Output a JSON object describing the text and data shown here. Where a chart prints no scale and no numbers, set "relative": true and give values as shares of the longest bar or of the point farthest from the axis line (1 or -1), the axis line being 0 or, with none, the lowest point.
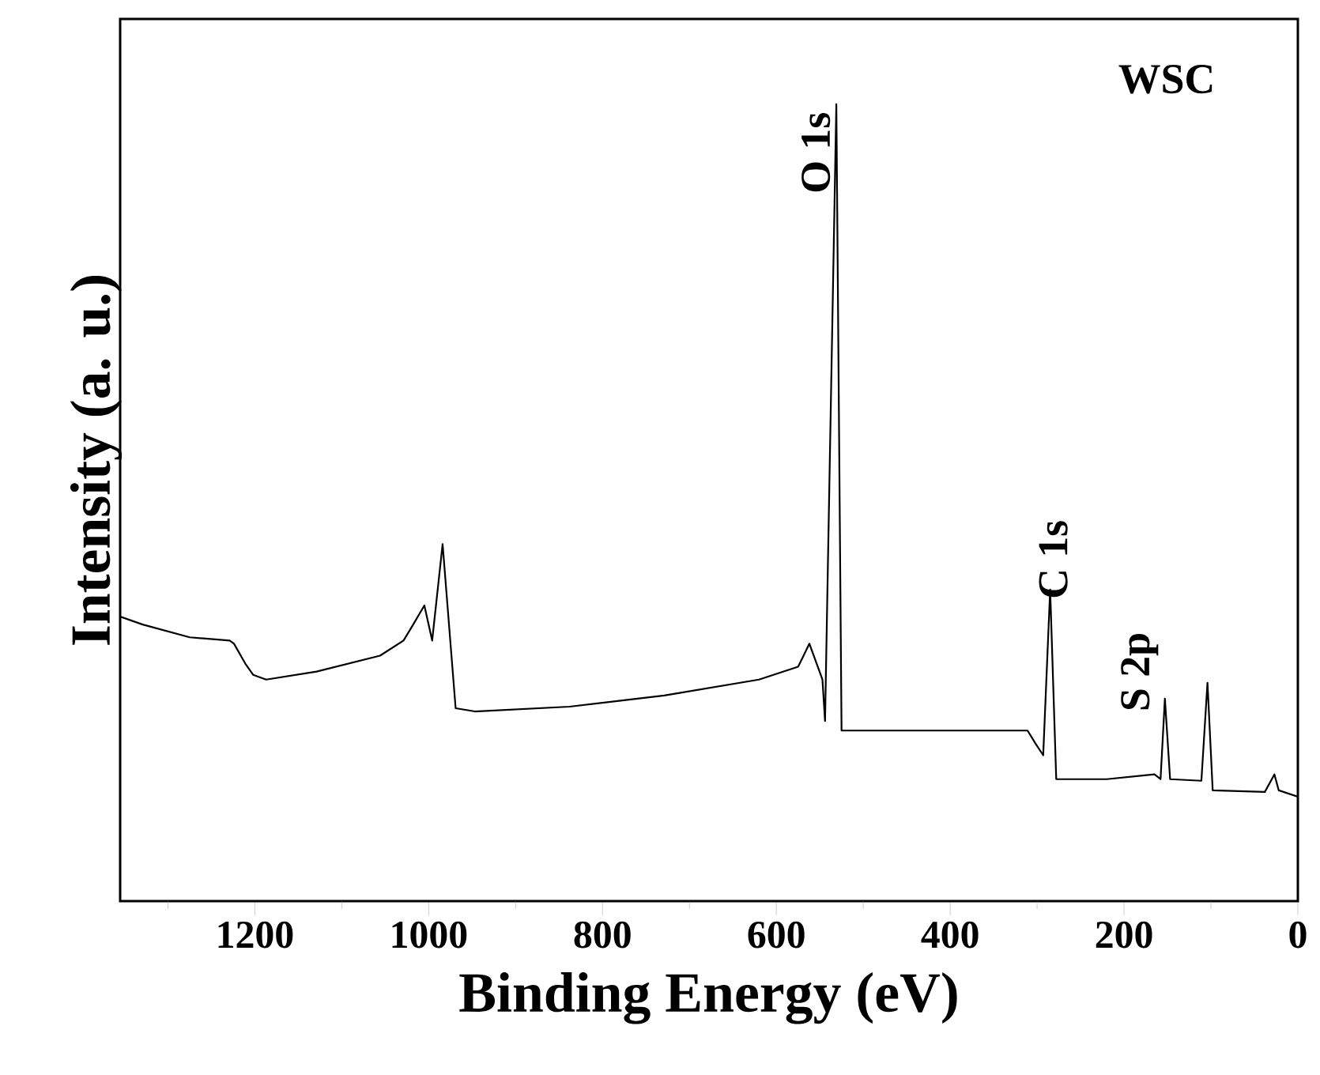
{
  "chart_data": {
    "type": "line",
    "relative": true,
    "xlabel": "Binding Energy (eV)",
    "ylabel": "Intensity (a. u.)",
    "x": [
      1355,
      1329,
      1275,
      1229,
      1224,
      1211,
      1202,
      1187,
      1129,
      1056,
      1029,
      1020,
      1005,
      996,
      984,
      969,
      947,
      838,
      729,
      620,
      575,
      562,
      547,
      544,
      531,
      525,
      402,
      311,
      302,
      293,
      285,
      278,
      220,
      165,
      158,
      153,
      147,
      111,
      104,
      98,
      38,
      27,
      22,
      0
    ],
    "values": [
      0.357,
      0.347,
      0.331,
      0.327,
      0.323,
      0.298,
      0.284,
      0.278,
      0.288,
      0.308,
      0.327,
      0.343,
      0.371,
      0.327,
      0.448,
      0.242,
      0.238,
      0.244,
      0.258,
      0.278,
      0.294,
      0.323,
      0.278,
      0.226,
      1,
      0.214,
      0.214,
      0.214,
      0.198,
      0.183,
      0.391,
      0.153,
      0.153,
      0.159,
      0.153,
      0.254,
      0.153,
      0.151,
      0.274,
      0.139,
      0.137,
      0.159,
      0.139,
      0.131
    ],
    "color": "#000000",
    "xlim": [
      1355,
      0
    ],
    "xticks": [
      {
        "value": 1300,
        "label": null
      },
      1200,
      {
        "value": 1100,
        "label": null
      },
      1000,
      {
        "value": 900,
        "label": null
      },
      800,
      {
        "value": 700,
        "label": null
      },
      600,
      {
        "value": 500,
        "label": null
      },
      400,
      {
        "value": 300,
        "label": null
      },
      200,
      {
        "value": 100,
        "label": null
      },
      0
    ],
    "annotations": [
      {
        "text": "O 1s",
        "x": 531,
        "y": 1
      },
      {
        "text": "C 1s",
        "x": 285,
        "y": 0.391
      },
      {
        "text": "S 2p",
        "x": 153,
        "y": 0.254
      },
      "WSC"
    ]
  }
}
